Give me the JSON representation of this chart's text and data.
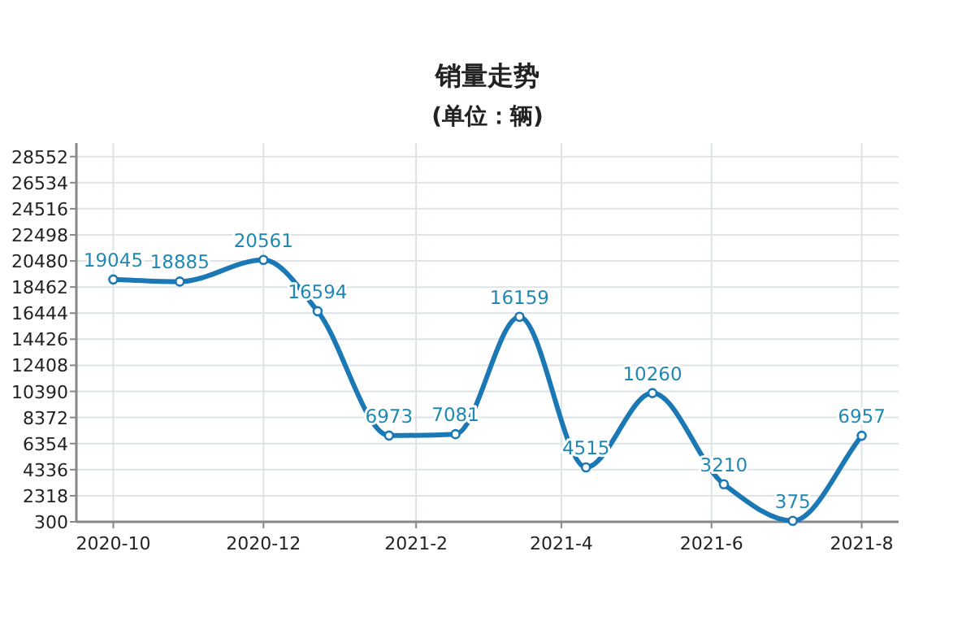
{
  "chart_data": {
    "type": "line",
    "title": "销量走势",
    "subtitle": "(单位：辆)",
    "x": [
      "2020-10-01",
      "2020-10-28",
      "2020-12-01",
      "2020-12-23",
      "2021-01-21",
      "2021-02-17",
      "2021-03-15",
      "2021-04-11",
      "2021-05-08",
      "2021-06-06",
      "2021-07-04",
      "2021-08-01"
    ],
    "series": [
      {
        "color": "#1a78b5",
        "values": [
          19045,
          18885,
          20561,
          16594,
          6973,
          7081,
          16159,
          4515,
          10260,
          3210,
          375,
          6957
        ]
      }
    ],
    "xlim": [
      "2020-09-16",
      "2021-08-16"
    ],
    "xticks": [
      "2020-10",
      "2020-12",
      "2021-2",
      "2021-4",
      "2021-6",
      "2021-8"
    ],
    "ylim": [
      300,
      29600
    ],
    "yticks": [
      300,
      2318,
      4336,
      6354,
      8372,
      10390,
      12408,
      14426,
      16444,
      18462,
      20480,
      22498,
      24516,
      26534,
      28552
    ],
    "grid": true,
    "marker": "circle",
    "data_labels": true
  }
}
